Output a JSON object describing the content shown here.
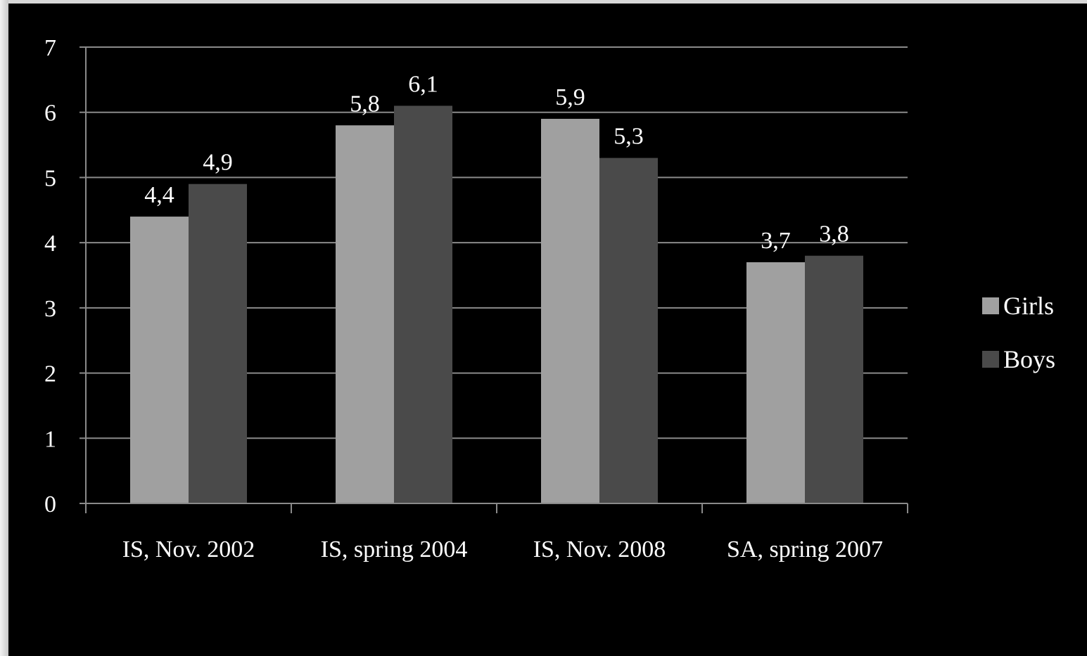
{
  "chart_data": {
    "type": "bar",
    "categories": [
      "IS, Nov. 2002",
      "IS, spring 2004",
      "IS, Nov. 2008",
      "SA, spring 2007"
    ],
    "series": [
      {
        "name": "Girls",
        "values": [
          4.4,
          5.8,
          5.9,
          3.7
        ],
        "labels": [
          "4,4",
          "5,8",
          "5,9",
          "3,7"
        ],
        "color": "#a0a0a0"
      },
      {
        "name": "Boys",
        "values": [
          4.9,
          6.1,
          5.3,
          3.8
        ],
        "labels": [
          "4,9",
          "6,1",
          "5,3",
          "3,8"
        ],
        "color": "#4a4a4a"
      }
    ],
    "ylim": [
      0,
      7
    ],
    "yticks": [
      0,
      1,
      2,
      3,
      4,
      5,
      6,
      7
    ],
    "grid": true,
    "legend": "right",
    "background": "#000000",
    "title": "",
    "xlabel": "",
    "ylabel": ""
  }
}
